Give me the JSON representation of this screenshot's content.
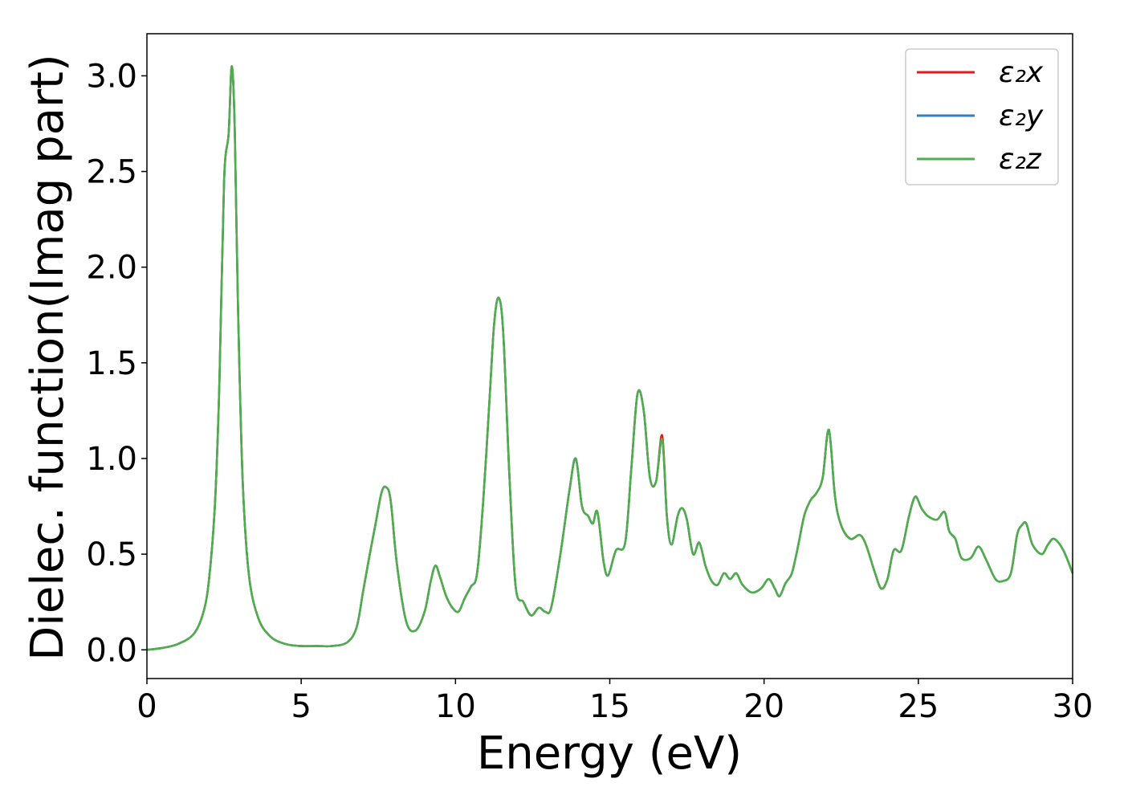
{
  "chart_data": {
    "type": "line",
    "title": "",
    "xlabel": "Energy (eV)",
    "ylabel": "Dielec. function(Imag part)",
    "xlim": [
      0,
      30
    ],
    "ylim": [
      -0.15,
      3.22
    ],
    "xticks": [
      "0",
      "5",
      "10",
      "15",
      "20",
      "25",
      "30"
    ],
    "yticks": [
      "0.0",
      "0.5",
      "1.0",
      "1.5",
      "2.0",
      "2.5",
      "3.0"
    ],
    "grid": false,
    "legend_position": "top-right",
    "x": [
      0,
      0.5,
      1.0,
      1.5,
      1.8,
      2.0,
      2.2,
      2.35,
      2.5,
      2.65,
      2.75,
      2.85,
      2.95,
      3.1,
      3.3,
      3.6,
      4.0,
      4.5,
      5.0,
      5.5,
      6.0,
      6.5,
      6.8,
      7.0,
      7.2,
      7.4,
      7.6,
      7.75,
      7.9,
      8.1,
      8.4,
      8.7,
      9.0,
      9.2,
      9.35,
      9.5,
      9.7,
      9.9,
      10.1,
      10.3,
      10.5,
      10.7,
      10.9,
      11.1,
      11.25,
      11.4,
      11.55,
      11.75,
      11.95,
      12.2,
      12.45,
      12.7,
      12.9,
      13.1,
      13.4,
      13.7,
      13.9,
      14.1,
      14.3,
      14.45,
      14.6,
      14.8,
      14.95,
      15.2,
      15.5,
      15.7,
      15.9,
      16.1,
      16.3,
      16.5,
      16.7,
      16.85,
      17.0,
      17.2,
      17.35,
      17.5,
      17.7,
      17.9,
      18.1,
      18.3,
      18.5,
      18.7,
      18.9,
      19.1,
      19.3,
      19.6,
      19.9,
      20.15,
      20.35,
      20.5,
      20.7,
      20.9,
      21.1,
      21.3,
      21.5,
      21.7,
      21.9,
      22.1,
      22.3,
      22.5,
      22.8,
      23.1,
      23.3,
      23.6,
      23.8,
      24.0,
      24.2,
      24.45,
      24.7,
      24.9,
      25.1,
      25.3,
      25.6,
      25.85,
      26.0,
      26.2,
      26.4,
      26.7,
      26.95,
      27.2,
      27.5,
      27.75,
      28.0,
      28.2,
      28.35,
      28.5,
      28.7,
      29.0,
      29.2,
      29.4,
      29.7,
      30.0
    ],
    "series": [
      {
        "name": "ε₂x",
        "color": "#e41a1c",
        "values": [
          0.0,
          0.01,
          0.03,
          0.08,
          0.18,
          0.35,
          0.75,
          1.4,
          2.45,
          2.7,
          3.05,
          2.7,
          1.8,
          0.9,
          0.4,
          0.17,
          0.07,
          0.03,
          0.02,
          0.02,
          0.02,
          0.04,
          0.12,
          0.3,
          0.48,
          0.65,
          0.82,
          0.85,
          0.78,
          0.45,
          0.15,
          0.1,
          0.2,
          0.36,
          0.44,
          0.38,
          0.28,
          0.22,
          0.2,
          0.27,
          0.33,
          0.4,
          0.78,
          1.3,
          1.7,
          1.84,
          1.65,
          0.9,
          0.33,
          0.25,
          0.18,
          0.22,
          0.2,
          0.22,
          0.5,
          0.84,
          1.0,
          0.75,
          0.7,
          0.66,
          0.72,
          0.46,
          0.39,
          0.52,
          0.56,
          0.95,
          1.34,
          1.25,
          0.9,
          0.88,
          1.12,
          0.7,
          0.55,
          0.7,
          0.74,
          0.68,
          0.5,
          0.56,
          0.44,
          0.36,
          0.34,
          0.4,
          0.37,
          0.4,
          0.34,
          0.3,
          0.32,
          0.37,
          0.32,
          0.28,
          0.35,
          0.4,
          0.54,
          0.7,
          0.78,
          0.82,
          0.9,
          1.15,
          0.8,
          0.65,
          0.58,
          0.6,
          0.55,
          0.4,
          0.32,
          0.37,
          0.52,
          0.52,
          0.7,
          0.8,
          0.74,
          0.7,
          0.68,
          0.72,
          0.62,
          0.58,
          0.48,
          0.48,
          0.54,
          0.47,
          0.37,
          0.36,
          0.4,
          0.6,
          0.65,
          0.66,
          0.55,
          0.5,
          0.55,
          0.58,
          0.52,
          0.4
        ]
      },
      {
        "name": "ε₂y",
        "color": "#377eb8",
        "values": [
          0.0,
          0.01,
          0.03,
          0.08,
          0.18,
          0.35,
          0.75,
          1.4,
          2.45,
          2.7,
          3.05,
          2.7,
          1.8,
          0.9,
          0.4,
          0.17,
          0.07,
          0.03,
          0.02,
          0.02,
          0.02,
          0.04,
          0.12,
          0.3,
          0.48,
          0.65,
          0.82,
          0.85,
          0.78,
          0.45,
          0.15,
          0.1,
          0.2,
          0.36,
          0.44,
          0.38,
          0.28,
          0.22,
          0.2,
          0.27,
          0.33,
          0.4,
          0.78,
          1.3,
          1.7,
          1.84,
          1.65,
          0.9,
          0.33,
          0.25,
          0.18,
          0.22,
          0.2,
          0.22,
          0.5,
          0.84,
          1.0,
          0.75,
          0.7,
          0.66,
          0.72,
          0.46,
          0.39,
          0.52,
          0.56,
          0.95,
          1.34,
          1.25,
          0.9,
          0.88,
          1.1,
          0.7,
          0.55,
          0.7,
          0.74,
          0.68,
          0.5,
          0.56,
          0.44,
          0.36,
          0.34,
          0.4,
          0.37,
          0.4,
          0.34,
          0.3,
          0.32,
          0.37,
          0.32,
          0.28,
          0.35,
          0.4,
          0.54,
          0.7,
          0.78,
          0.82,
          0.9,
          1.15,
          0.8,
          0.65,
          0.58,
          0.6,
          0.55,
          0.4,
          0.32,
          0.37,
          0.52,
          0.52,
          0.7,
          0.8,
          0.74,
          0.7,
          0.68,
          0.72,
          0.62,
          0.58,
          0.48,
          0.48,
          0.54,
          0.47,
          0.37,
          0.36,
          0.4,
          0.6,
          0.65,
          0.66,
          0.55,
          0.5,
          0.55,
          0.58,
          0.52,
          0.4
        ]
      },
      {
        "name": "ε₂z",
        "color": "#4daf4a",
        "values": [
          0.0,
          0.01,
          0.03,
          0.08,
          0.18,
          0.35,
          0.75,
          1.4,
          2.45,
          2.7,
          3.05,
          2.7,
          1.8,
          0.9,
          0.4,
          0.17,
          0.07,
          0.03,
          0.02,
          0.02,
          0.02,
          0.04,
          0.12,
          0.3,
          0.48,
          0.65,
          0.82,
          0.85,
          0.78,
          0.45,
          0.15,
          0.1,
          0.2,
          0.36,
          0.44,
          0.38,
          0.28,
          0.22,
          0.2,
          0.27,
          0.33,
          0.4,
          0.78,
          1.3,
          1.7,
          1.84,
          1.65,
          0.9,
          0.33,
          0.25,
          0.18,
          0.22,
          0.2,
          0.22,
          0.5,
          0.84,
          1.0,
          0.75,
          0.7,
          0.66,
          0.72,
          0.46,
          0.39,
          0.52,
          0.56,
          0.95,
          1.34,
          1.25,
          0.9,
          0.88,
          1.1,
          0.7,
          0.55,
          0.7,
          0.74,
          0.68,
          0.5,
          0.56,
          0.44,
          0.36,
          0.34,
          0.4,
          0.37,
          0.4,
          0.34,
          0.3,
          0.32,
          0.37,
          0.32,
          0.28,
          0.35,
          0.4,
          0.54,
          0.7,
          0.78,
          0.82,
          0.9,
          1.15,
          0.8,
          0.65,
          0.58,
          0.6,
          0.55,
          0.4,
          0.32,
          0.37,
          0.52,
          0.52,
          0.7,
          0.8,
          0.74,
          0.7,
          0.68,
          0.72,
          0.62,
          0.58,
          0.48,
          0.48,
          0.54,
          0.47,
          0.37,
          0.36,
          0.4,
          0.6,
          0.65,
          0.66,
          0.55,
          0.5,
          0.55,
          0.58,
          0.52,
          0.4
        ]
      }
    ]
  }
}
